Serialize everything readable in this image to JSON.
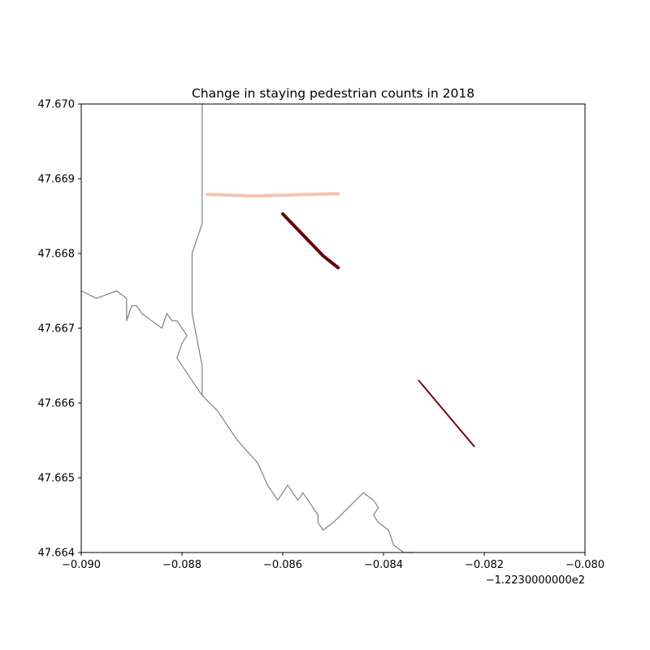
{
  "chart_data": {
    "type": "map",
    "title": "Change in staying pedestrian counts in 2018",
    "x_offset_label": "−1.2230000000e2",
    "xlim": [
      -0.09,
      -0.08
    ],
    "ylim": [
      47.664,
      47.67
    ],
    "x_ticks": [
      {
        "value": -0.09,
        "label": "−0.090"
      },
      {
        "value": -0.088,
        "label": "−0.088"
      },
      {
        "value": -0.086,
        "label": "−0.086"
      },
      {
        "value": -0.084,
        "label": "−0.084"
      },
      {
        "value": -0.082,
        "label": "−0.082"
      },
      {
        "value": -0.08,
        "label": "−0.080"
      }
    ],
    "y_ticks": [
      {
        "value": 47.664,
        "label": "47.664"
      },
      {
        "value": 47.665,
        "label": "47.665"
      },
      {
        "value": 47.666,
        "label": "47.666"
      },
      {
        "value": 47.667,
        "label": "47.667"
      },
      {
        "value": 47.668,
        "label": "47.668"
      },
      {
        "value": 47.669,
        "label": "47.669"
      },
      {
        "value": 47.67,
        "label": "47.670"
      }
    ],
    "boundary": [
      [
        [
          -0.0876,
          47.67
        ],
        [
          -0.0876,
          47.6684
        ],
        [
          -0.0878,
          47.668
        ],
        [
          -0.0878,
          47.6672
        ],
        [
          -0.0876,
          47.6665
        ],
        [
          -0.0876,
          47.6661
        ]
      ],
      [
        [
          -0.09,
          47.6675
        ],
        [
          -0.0897,
          47.6674
        ],
        [
          -0.0893,
          47.6675
        ],
        [
          -0.0891,
          47.6674
        ],
        [
          -0.0891,
          47.6671
        ],
        [
          -0.089,
          47.6673
        ],
        [
          -0.0889,
          47.6673
        ],
        [
          -0.0888,
          47.6672
        ],
        [
          -0.0886,
          47.6671
        ],
        [
          -0.0884,
          47.667
        ],
        [
          -0.0883,
          47.6672
        ],
        [
          -0.0882,
          47.6671
        ],
        [
          -0.0881,
          47.6671
        ],
        [
          -0.088,
          47.667
        ],
        [
          -0.0879,
          47.6669
        ],
        [
          -0.088,
          47.6668
        ],
        [
          -0.0881,
          47.6666
        ],
        [
          -0.0876,
          47.6661
        ],
        [
          -0.0873,
          47.6659
        ],
        [
          -0.0869,
          47.6655
        ],
        [
          -0.0865,
          47.6652
        ],
        [
          -0.0863,
          47.6649
        ],
        [
          -0.0861,
          47.6647
        ],
        [
          -0.0859,
          47.6649
        ],
        [
          -0.0858,
          47.6648
        ],
        [
          -0.0857,
          47.6647
        ],
        [
          -0.0856,
          47.6648
        ],
        [
          -0.0855,
          47.6647
        ],
        [
          -0.0853,
          47.6645
        ],
        [
          -0.0853,
          47.6644
        ],
        [
          -0.0852,
          47.6643
        ],
        [
          -0.0852,
          47.6643
        ],
        [
          -0.085,
          47.6644
        ],
        [
          -0.0847,
          47.6646
        ],
        [
          -0.0844,
          47.6648
        ],
        [
          -0.0842,
          47.6647
        ],
        [
          -0.0841,
          47.6646
        ],
        [
          -0.0842,
          47.6645
        ],
        [
          -0.0841,
          47.6644
        ],
        [
          -0.0839,
          47.6643
        ],
        [
          -0.0838,
          47.6641
        ],
        [
          -0.0836,
          47.664
        ],
        [
          -0.0835,
          47.664
        ],
        [
          -0.0834,
          47.664
        ]
      ]
    ],
    "segments": [
      {
        "points": [
          [
            -0.0875,
            47.66879
          ],
          [
            -0.0866,
            47.66877
          ],
          [
            -0.086,
            47.66878
          ],
          [
            -0.0849,
            47.6688
          ]
        ],
        "color": "#f6c3ae",
        "width": 4
      },
      {
        "points": [
          [
            -0.086,
            47.66853
          ],
          [
            -0.0852,
            47.66797
          ],
          [
            -0.0849,
            47.66781
          ]
        ],
        "color": "#67000d",
        "width": 4
      },
      {
        "points": [
          [
            -0.0833,
            47.6663
          ],
          [
            -0.0822,
            47.66542
          ]
        ],
        "color": "#6e0b12",
        "width": 2
      }
    ]
  }
}
